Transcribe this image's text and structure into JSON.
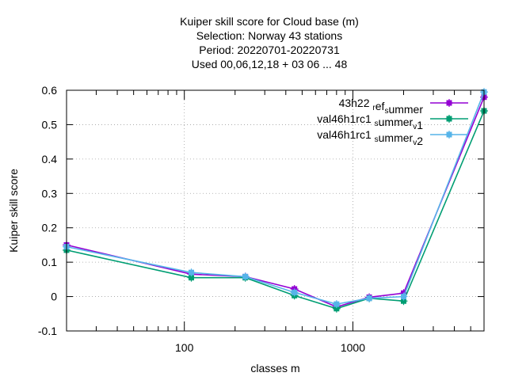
{
  "chart_data": {
    "type": "line",
    "title_lines": [
      "Kuiper skill score  for Cloud base (m)",
      "Selection: Norway     43 stations",
      "Period: 20220701-20220731",
      "Used  00,06,12,18  + 03 06 ... 48"
    ],
    "xlabel": "classes m",
    "ylabel": "Kuiper skill score",
    "x_scale": "log",
    "xlim": [
      20,
      6000
    ],
    "ylim": [
      -0.1,
      0.6
    ],
    "x_ticks": [
      100,
      1000
    ],
    "x_tick_labels": [
      "100",
      "1000"
    ],
    "y_ticks": [
      -0.1,
      0,
      0.1,
      0.2,
      0.3,
      0.4,
      0.5,
      0.6
    ],
    "y_tick_labels": [
      "-0.1",
      "0",
      "0.1",
      "0.2",
      "0.3",
      "0.4",
      "0.5",
      "0.6"
    ],
    "grid": true,
    "legend_position": "top-right",
    "x": [
      20,
      110,
      230,
      450,
      800,
      1250,
      2000,
      6000
    ],
    "series": [
      {
        "name": "43h22 ref summer",
        "legend_parts": [
          [
            "43h22 ",
            "n"
          ],
          [
            "r",
            "sub"
          ],
          [
            "ef",
            "n"
          ],
          [
            "s",
            "sub"
          ],
          [
            "ummer",
            "n"
          ]
        ],
        "color": "#9400d3",
        "values": [
          0.15,
          0.065,
          0.058,
          0.022,
          -0.03,
          -0.002,
          0.01,
          0.58
        ]
      },
      {
        "name": "val46h1rc1 summer v 1",
        "legend_parts": [
          [
            "val46h1rc1 ",
            "n"
          ],
          [
            "s",
            "sub"
          ],
          [
            "ummer",
            "n"
          ],
          [
            "v",
            "sub"
          ],
          [
            "1",
            "n"
          ]
        ],
        "color": "#009e73",
        "values": [
          0.135,
          0.055,
          0.055,
          0.003,
          -0.035,
          -0.005,
          -0.013,
          0.54
        ]
      },
      {
        "name": "val46h1rc1 summer v 2",
        "legend_parts": [
          [
            "val46h1rc1 ",
            "n"
          ],
          [
            "s",
            "sub"
          ],
          [
            "ummer",
            "n"
          ],
          [
            "v",
            "sub"
          ],
          [
            "2",
            "n"
          ]
        ],
        "color": "#56b4e9",
        "values": [
          0.145,
          0.07,
          0.058,
          0.012,
          -0.022,
          -0.005,
          0.0,
          0.595
        ]
      }
    ]
  }
}
